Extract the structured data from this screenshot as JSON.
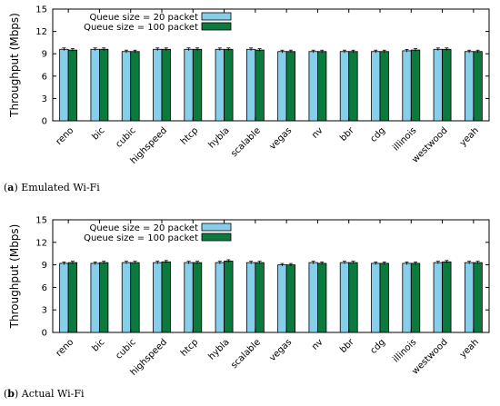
{
  "chart_data": [
    {
      "type": "bar",
      "caption_letter": "a",
      "caption_text": "Emulated Wi-Fi",
      "ylabel": "Throughput (Mbps)",
      "ylim": [
        0,
        15
      ],
      "yticks": [
        0,
        3,
        6,
        9,
        12,
        15
      ],
      "categories": [
        "reno",
        "bic",
        "cubic",
        "highspeed",
        "htcp",
        "hybla",
        "scalable",
        "vegas",
        "nv",
        "bbr",
        "cdg",
        "illinois",
        "westwood",
        "yeah"
      ],
      "series": [
        {
          "name": "Queue size = 20 packet",
          "color": "#87ceeb",
          "values": [
            9.6,
            9.6,
            9.3,
            9.6,
            9.6,
            9.6,
            9.6,
            9.3,
            9.3,
            9.3,
            9.3,
            9.4,
            9.6,
            9.3
          ]
        },
        {
          "name": "Queue size = 100 packet",
          "color": "#0b7a3c",
          "values": [
            9.5,
            9.6,
            9.3,
            9.6,
            9.6,
            9.6,
            9.5,
            9.3,
            9.3,
            9.3,
            9.3,
            9.5,
            9.6,
            9.3
          ]
        }
      ],
      "legend": "top-center",
      "grid": false
    },
    {
      "type": "bar",
      "caption_letter": "b",
      "caption_text": "Actual Wi-Fi",
      "ylabel": "Throughput (Mbps)",
      "ylim": [
        0,
        15
      ],
      "yticks": [
        0,
        3,
        6,
        9,
        12,
        15
      ],
      "categories": [
        "reno",
        "bic",
        "cubic",
        "highspeed",
        "htcp",
        "hybla",
        "scalable",
        "vegas",
        "nv",
        "bbr",
        "cdg",
        "illinois",
        "westwood",
        "yeah"
      ],
      "series": [
        {
          "name": "Queue size = 20 packet",
          "color": "#87ceeb",
          "values": [
            9.2,
            9.2,
            9.3,
            9.3,
            9.3,
            9.3,
            9.3,
            9.0,
            9.3,
            9.3,
            9.2,
            9.2,
            9.3,
            9.3
          ]
        },
        {
          "name": "Queue size = 100 packet",
          "color": "#0b7a3c",
          "values": [
            9.3,
            9.3,
            9.3,
            9.4,
            9.3,
            9.5,
            9.3,
            9.0,
            9.2,
            9.3,
            9.2,
            9.2,
            9.4,
            9.3
          ]
        }
      ],
      "legend": "top-center",
      "grid": false
    }
  ]
}
